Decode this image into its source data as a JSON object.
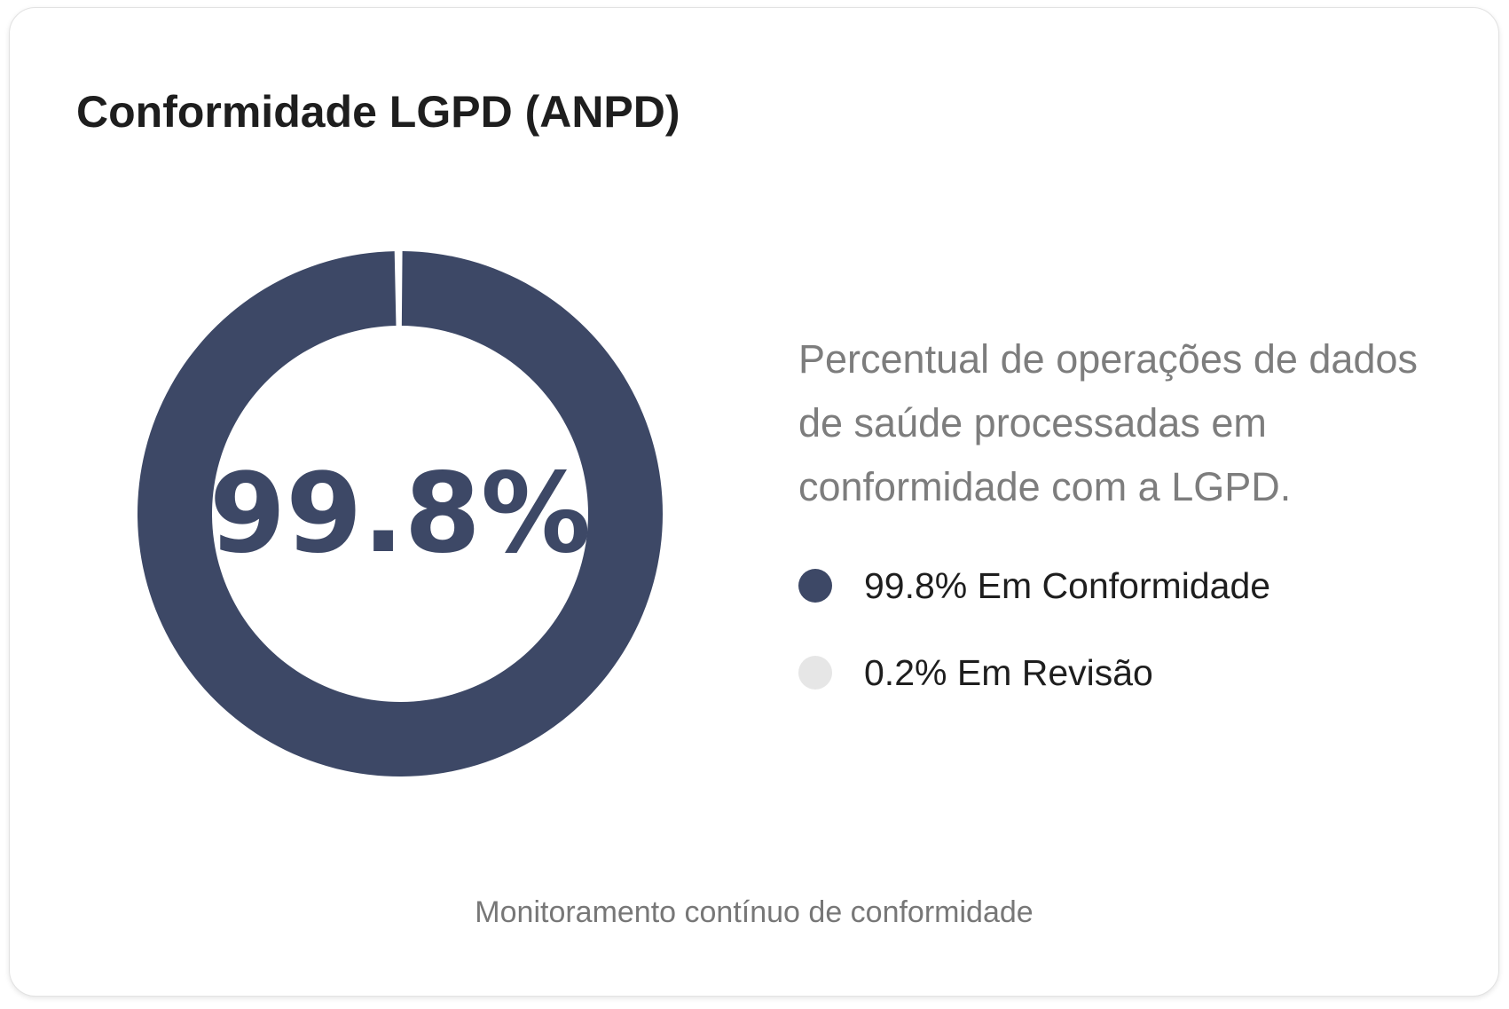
{
  "card": {
    "title": "Conformidade LGPD (ANPD)",
    "description": "Percentual de operações de dados de saúde processadas em conformidade com a LGPD.",
    "footer": "Monitoramento contínuo de conformidade",
    "center_value": "99.8%"
  },
  "legend": [
    {
      "label": "99.8% Em Conformidade",
      "color": "#3d4866"
    },
    {
      "label": "0.2% Em Revisão",
      "color": "#e6e6e6"
    }
  ],
  "chart_data": {
    "type": "pie",
    "variant": "donut",
    "categories": [
      "Em Conformidade",
      "Em Revisão"
    ],
    "values": [
      99.8,
      0.2
    ],
    "unit": "%",
    "colors": [
      "#3d4866",
      "#e6e6e6"
    ],
    "center_label": "99.8%",
    "legend_position": "right"
  }
}
